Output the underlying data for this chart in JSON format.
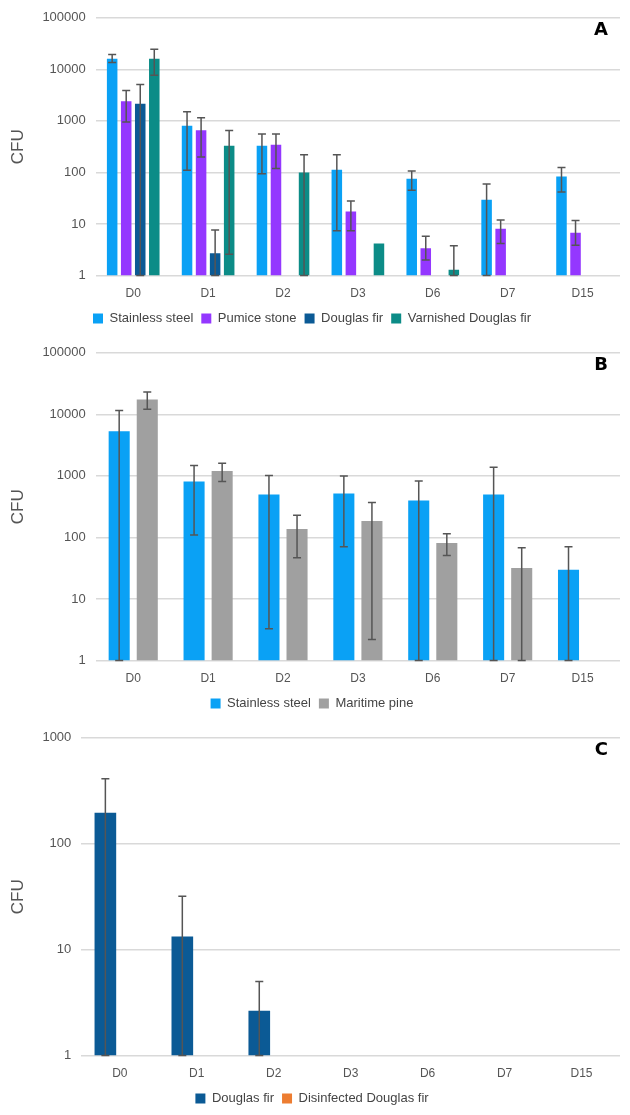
{
  "chart_data": [
    {
      "type": "bar",
      "title": "A",
      "ylabel": "CFU",
      "categories": [
        "D0",
        "D1",
        "D2",
        "D3",
        "D6",
        "D7",
        "D15"
      ],
      "log": "y",
      "grid": "y",
      "legend": "bottom",
      "ylim": [
        1,
        100000
      ],
      "yticks": [
        1,
        10,
        100,
        1000,
        10000,
        100000
      ],
      "series": [
        {
          "name": "Stainless steel",
          "color": "#0aa1f5",
          "values": [
            16000,
            810,
            330,
            113,
            76,
            29.5,
            84
          ],
          "errors": [
            [
              13600,
              19500
            ],
            [
              110,
              1500
            ],
            [
              95,
              560
            ],
            [
              7.4,
              220
            ],
            [
              45,
              107
            ],
            [
              1,
              60
            ],
            [
              42,
              125
            ]
          ]
        },
        {
          "name": "Pumice stone",
          "color": "#9437ff",
          "values": [
            2400,
            660,
            345,
            17.5,
            3.4,
            8.1,
            6.8
          ],
          "errors": [
            [
              950,
              3900
            ],
            [
              200,
              1150
            ],
            [
              120,
              560
            ],
            [
              7.4,
              28
            ],
            [
              2,
              5.8
            ],
            [
              4.2,
              12
            ],
            [
              3.9,
              11.7
            ]
          ]
        },
        {
          "name": "Douglas fir",
          "color": "#0b5a95",
          "values": [
            2150,
            2.7,
            null,
            null,
            null,
            null,
            null
          ],
          "errors": [
            [
              1,
              5100
            ],
            [
              1,
              7.7
            ],
            null,
            null,
            null,
            null,
            null
          ]
        },
        {
          "name": "Varnished Douglas fir",
          "color": "#0c8c87",
          "values": [
            16000,
            330,
            100,
            4.2,
            1.3,
            null,
            null
          ],
          "errors": [
            [
              7700,
              24500
            ],
            [
              2.6,
              650
            ],
            [
              1,
              220
            ],
            null,
            [
              1,
              3.8
            ],
            null,
            null
          ]
        }
      ]
    },
    {
      "type": "bar",
      "title": "B",
      "ylabel": "CFU",
      "categories": [
        "D0",
        "D1",
        "D2",
        "D3",
        "D6",
        "D7",
        "D15"
      ],
      "log": "y",
      "grid": "y",
      "legend": "bottom",
      "ylim": [
        1,
        100000
      ],
      "yticks": [
        1,
        10,
        100,
        1000,
        10000,
        100000
      ],
      "series": [
        {
          "name": "Stainless steel",
          "color": "#0aa1f5",
          "values": [
            5300,
            810,
            500,
            520,
            400,
            500,
            30
          ],
          "errors": [
            [
              1,
              11500
            ],
            [
              110,
              1480
            ],
            [
              3.3,
              1020
            ],
            [
              71,
              1000
            ],
            [
              1,
              830
            ],
            [
              1,
              1380
            ],
            [
              1,
              71
            ]
          ]
        },
        {
          "name": "Maritime pine",
          "color": "#a0a0a0",
          "values": [
            17500,
            1200,
            137,
            185,
            81,
            32,
            null
          ],
          "errors": [
            [
              12100,
              23000
            ],
            [
              810,
              1600
            ],
            [
              47,
              230
            ],
            [
              2.2,
              370
            ],
            [
              51,
              115
            ],
            [
              1,
              68
            ],
            null
          ]
        }
      ]
    },
    {
      "type": "bar",
      "title": "C",
      "ylabel": "CFU",
      "categories": [
        "D0",
        "D1",
        "D2",
        "D3",
        "D6",
        "D7",
        "D15"
      ],
      "log": "y",
      "grid": "y",
      "legend": "bottom",
      "ylim": [
        1,
        1000
      ],
      "yticks": [
        1,
        10,
        100,
        1000
      ],
      "series": [
        {
          "name": "Douglas fir",
          "color": "#0b5a95",
          "values": [
            196,
            13.3,
            2.65,
            null,
            null,
            null,
            null
          ],
          "errors": [
            [
              1,
              410
            ],
            [
              1,
              32
            ],
            [
              1,
              5.0
            ],
            null,
            null,
            null,
            null
          ]
        },
        {
          "name": "Disinfected Douglas fir",
          "color": "#ed7d31",
          "values": [
            null,
            null,
            null,
            null,
            null,
            null,
            null
          ]
        }
      ]
    }
  ]
}
